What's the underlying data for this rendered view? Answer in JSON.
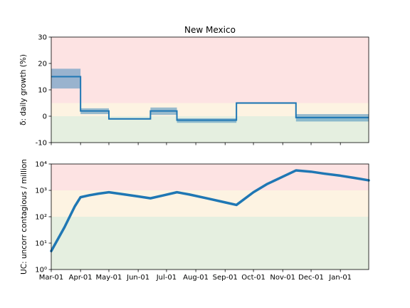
{
  "chart_data": [
    {
      "type": "line",
      "title": "New Mexico",
      "ylabel": "δ: daily growth (%)",
      "xlabel": "",
      "ylim": [
        -10,
        30
      ],
      "yticks": [
        -10,
        0,
        10,
        20,
        30
      ],
      "xlim": [
        "2020-03-01",
        "2021-01-31"
      ],
      "grid": false,
      "bands": [
        {
          "from": -10,
          "to": 0,
          "color": "#e5efe0"
        },
        {
          "from": 0,
          "to": 5,
          "color": "#fdf3e2"
        },
        {
          "from": 5,
          "to": 30,
          "color": "#fde3e3"
        }
      ],
      "series": [
        {
          "style": "step",
          "color": "#1f77b4",
          "points": [
            {
              "x_start": "2020-03-01",
              "x_end": "2020-04-01",
              "y": 15,
              "y_low": 10.5,
              "y_high": 18
            },
            {
              "x_start": "2020-04-01",
              "x_end": "2020-05-01",
              "y": 2,
              "y_low": 0.8,
              "y_high": 3
            },
            {
              "x_start": "2020-05-01",
              "x_end": "2020-06-14",
              "y": -1,
              "y_low": -1.3,
              "y_high": -0.7
            },
            {
              "x_start": "2020-06-14",
              "x_end": "2020-07-12",
              "y": 2,
              "y_low": 0.5,
              "y_high": 3.3
            },
            {
              "x_start": "2020-07-12",
              "x_end": "2020-09-13",
              "y": -1.5,
              "y_low": -2.5,
              "y_high": -0.8
            },
            {
              "x_start": "2020-09-13",
              "x_end": "2020-11-15",
              "y": 5,
              "y_low": 4.7,
              "y_high": 5.3
            },
            {
              "x_start": "2020-11-15",
              "x_end": "2021-01-31",
              "y": -0.5,
              "y_low": -2,
              "y_high": 0.8
            }
          ]
        }
      ]
    },
    {
      "type": "line",
      "title": "",
      "ylabel": "UC: uncorr contagious / million",
      "xlabel": "",
      "yscale": "log",
      "ylim": [
        1,
        10000
      ],
      "yticks": [
        1,
        10,
        100,
        1000,
        10000
      ],
      "ytick_labels": [
        "10⁰",
        "10¹",
        "10²",
        "10³",
        "10⁴"
      ],
      "xlim": [
        "2020-03-01",
        "2021-01-31"
      ],
      "grid": false,
      "bands": [
        {
          "from": 1,
          "to": 100,
          "color": "#e5efe0"
        },
        {
          "from": 100,
          "to": 1000,
          "color": "#fdf3e2"
        },
        {
          "from": 1000,
          "to": 10000,
          "color": "#fde3e3"
        }
      ],
      "series": [
        {
          "color": "#1f77b4",
          "x": [
            "2020-03-01",
            "2020-03-15",
            "2020-03-26",
            "2020-04-01",
            "2020-04-10",
            "2020-04-20",
            "2020-05-01",
            "2020-05-15",
            "2020-06-01",
            "2020-06-14",
            "2020-06-28",
            "2020-07-12",
            "2020-07-25",
            "2020-08-15",
            "2020-09-01",
            "2020-09-13",
            "2020-10-01",
            "2020-10-15",
            "2020-11-01",
            "2020-11-15",
            "2020-12-01",
            "2020-12-15",
            "2021-01-01",
            "2021-01-15",
            "2021-01-31"
          ],
          "y": [
            5,
            40,
            250,
            550,
            650,
            750,
            850,
            720,
            590,
            500,
            650,
            850,
            700,
            480,
            350,
            280,
            850,
            1700,
            3300,
            5700,
            5100,
            4300,
            3600,
            3000,
            2400
          ]
        }
      ]
    }
  ],
  "x_tick_labels": [
    "Mar-01",
    "Apr-01",
    "May-01",
    "Jun-01",
    "Jul-01",
    "Aug-01",
    "Sep-01",
    "Oct-01",
    "Nov-01",
    "Dec-01",
    "Jan-01"
  ],
  "x_ticks": [
    "2020-03-01",
    "2020-04-01",
    "2020-05-01",
    "2020-06-01",
    "2020-07-01",
    "2020-08-01",
    "2020-09-01",
    "2020-10-01",
    "2020-11-01",
    "2020-12-01",
    "2021-01-01"
  ]
}
